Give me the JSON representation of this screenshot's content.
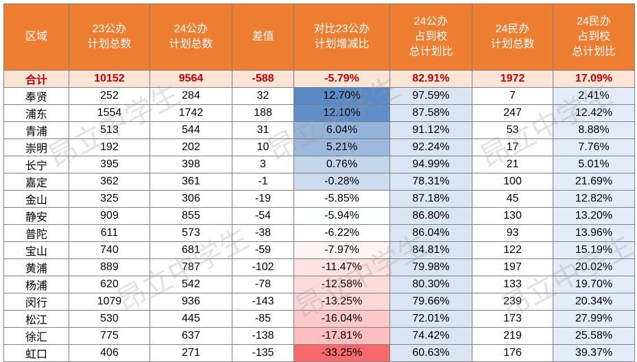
{
  "table": {
    "header": [
      [
        "区域"
      ],
      [
        "23公办",
        "计划总数"
      ],
      [
        "24公办",
        "计划总数"
      ],
      [
        "差值"
      ],
      [
        "对比23公办",
        "计划增减比"
      ],
      [
        "24公办",
        "占到校",
        "总计划比"
      ],
      [
        "24民办",
        "计划总数"
      ],
      [
        "24民办",
        "占到校",
        "总计划比"
      ]
    ],
    "total": [
      "合计",
      "10152",
      "9564",
      "-588",
      "-5.79%",
      "82.91%",
      "1972",
      "17.09%"
    ],
    "rows": [
      [
        "奉贤",
        "252",
        "284",
        "32",
        "12.70%",
        "97.59%",
        "7",
        "2.41%"
      ],
      [
        "浦东",
        "1554",
        "1742",
        "188",
        "12.10%",
        "87.58%",
        "247",
        "12.42%"
      ],
      [
        "青浦",
        "513",
        "544",
        "31",
        "6.04%",
        "91.12%",
        "53",
        "8.88%"
      ],
      [
        "崇明",
        "192",
        "202",
        "10",
        "5.21%",
        "92.24%",
        "17",
        "7.76%"
      ],
      [
        "长宁",
        "395",
        "398",
        "3",
        "0.76%",
        "94.99%",
        "21",
        "5.01%"
      ],
      [
        "嘉定",
        "362",
        "361",
        "-1",
        "-0.28%",
        "78.31%",
        "100",
        "21.69%"
      ],
      [
        "金山",
        "325",
        "306",
        "-19",
        "-5.85%",
        "87.18%",
        "45",
        "12.82%"
      ],
      [
        "静安",
        "909",
        "855",
        "-54",
        "-5.94%",
        "86.80%",
        "130",
        "13.20%"
      ],
      [
        "普陀",
        "611",
        "573",
        "-38",
        "-6.22%",
        "86.04%",
        "93",
        "13.96%"
      ],
      [
        "宝山",
        "740",
        "681",
        "-59",
        "-7.97%",
        "84.81%",
        "122",
        "15.19%"
      ],
      [
        "黄浦",
        "889",
        "787",
        "-102",
        "-11.47%",
        "79.98%",
        "197",
        "20.02%"
      ],
      [
        "杨浦",
        "620",
        "542",
        "-78",
        "-12.58%",
        "80.30%",
        "133",
        "19.70%"
      ],
      [
        "闵行",
        "1079",
        "936",
        "-143",
        "-13.25%",
        "79.66%",
        "239",
        "20.34%"
      ],
      [
        "松江",
        "530",
        "445",
        "-85",
        "-16.04%",
        "72.01%",
        "173",
        "27.99%"
      ],
      [
        "徐汇",
        "775",
        "637",
        "-138",
        "-17.81%",
        "74.42%",
        "219",
        "25.58%"
      ],
      [
        "虹口",
        "406",
        "271",
        "-135",
        "-33.25%",
        "60.63%",
        "176",
        "39.37%"
      ]
    ]
  },
  "watermark": "昂立中学生"
}
